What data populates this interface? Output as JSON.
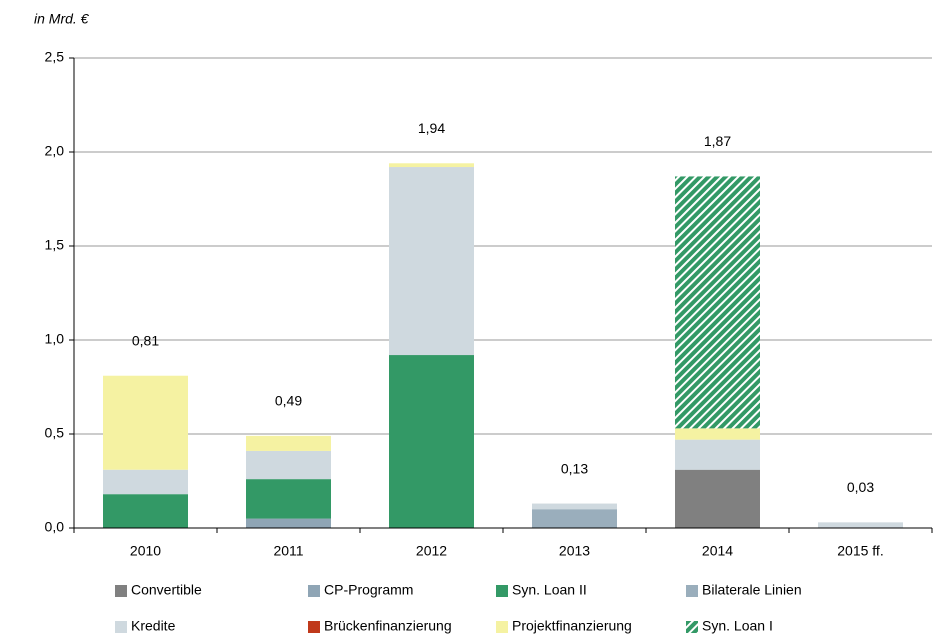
{
  "chart_data": {
    "type": "stacked_bar",
    "y_label": "in Mrd. €",
    "categories": [
      "2010",
      "2011",
      "2012",
      "2013",
      "2014",
      "2015 ff."
    ],
    "series": [
      {
        "name": "Convertible",
        "color": "#808080",
        "values": [
          0,
          0,
          0,
          0,
          0.31,
          0
        ]
      },
      {
        "name": "CP-Programm",
        "color": "#8fa5b5",
        "values": [
          0,
          0.05,
          0,
          0,
          0,
          0
        ]
      },
      {
        "name": "Syn. Loan II",
        "color": "#339966",
        "values": [
          0.18,
          0.21,
          0.92,
          0,
          0,
          0
        ]
      },
      {
        "name": "Bilaterale Linien",
        "color": "#9aaebc",
        "values": [
          0,
          0,
          0,
          0.1,
          0,
          0
        ]
      },
      {
        "name": "Kredite",
        "color": "#cfd9df",
        "values": [
          0.13,
          0.15,
          1.0,
          0.03,
          0.16,
          0.03
        ]
      },
      {
        "name": "Brückenfinanzierung",
        "color": "#c0391b",
        "values": [
          0,
          0,
          0,
          0,
          0,
          0
        ]
      },
      {
        "name": "Projektfinanzierung",
        "color": "#f5f2a2",
        "values": [
          0.5,
          0.08,
          0.02,
          0,
          0.06,
          0
        ]
      },
      {
        "name": "Syn. Loan I",
        "color": "#339966",
        "hatch": true,
        "values": [
          0,
          0,
          0,
          0,
          1.34,
          0
        ]
      }
    ],
    "totals": [
      0.81,
      0.49,
      1.94,
      0.13,
      1.87,
      0.03
    ],
    "total_labels": [
      "0,81",
      "0,49",
      "1,94",
      "0,13",
      "1,87",
      "0,03"
    ],
    "ylim": [
      0,
      2.5
    ],
    "yticks": [
      {
        "value": 0,
        "label": "0,0"
      },
      {
        "value": 0.5,
        "label": "0,5"
      },
      {
        "value": 1,
        "label": "1,0"
      },
      {
        "value": 1.5,
        "label": "1,5"
      },
      {
        "value": 2,
        "label": "2,0"
      },
      {
        "value": 2.5,
        "label": "2,5"
      }
    ],
    "grid": true
  }
}
